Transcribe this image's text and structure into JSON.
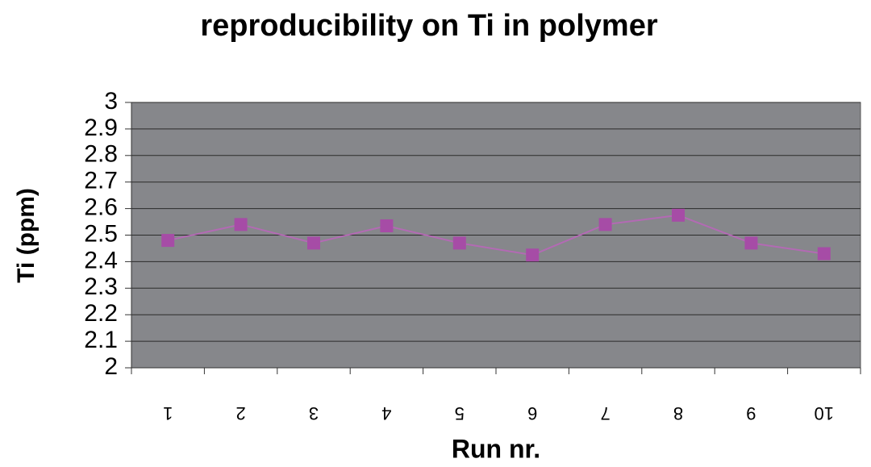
{
  "chart_data": {
    "type": "line",
    "title": "reproducibility on Ti in polymer",
    "x_label": "Run nr.",
    "y_label": "Ti (ppm)",
    "categories": [
      "1",
      "2",
      "3",
      "4",
      "5",
      "6",
      "7",
      "8",
      "9",
      "10"
    ],
    "series": [
      {
        "name": "Ti",
        "color": "#a64ca6",
        "values": [
          2.48,
          2.54,
          2.47,
          2.535,
          2.47,
          2.425,
          2.54,
          2.575,
          2.47,
          2.43
        ]
      }
    ],
    "ylim": [
      2,
      3
    ],
    "yticks": [
      2,
      2.1,
      2.2,
      2.3,
      2.4,
      2.5,
      2.6,
      2.7,
      2.8,
      2.9,
      3
    ],
    "grid": true,
    "plot_background": "#86878b"
  }
}
